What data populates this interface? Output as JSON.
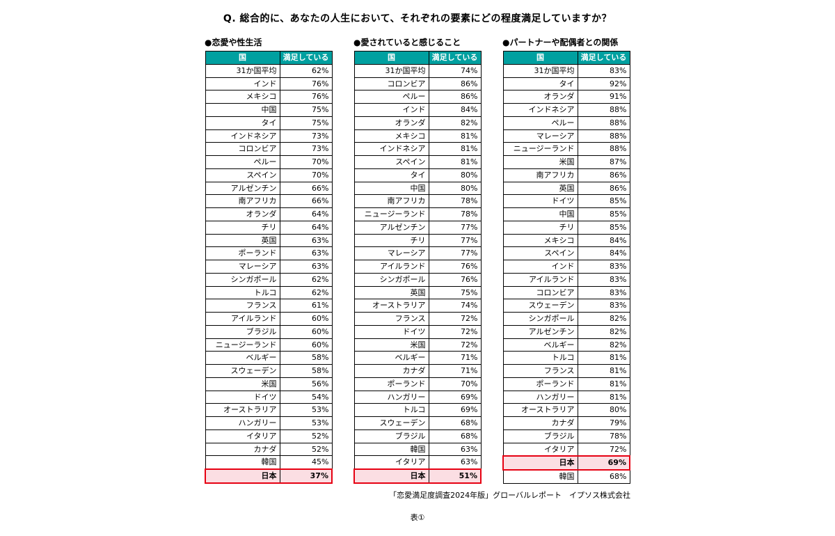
{
  "page": {
    "question": "Q. 総合的に、あなたの人生において、それぞれの要素にどの程度満足していますか？",
    "source": "「恋愛満足度調査2024年版」グローバルレポート　イプソス株式会社",
    "caption": "表①"
  },
  "colors": {
    "header_bg": "#00A0A0",
    "header_text": "#FFFFFF",
    "highlight_bg": "#FBDEE3",
    "highlight_border": "#E60012",
    "grid": "#000000"
  },
  "chart_data": [
    {
      "type": "table",
      "title": "●恋愛や性生活",
      "columns": [
        "国",
        "満足している"
      ],
      "highlight_row": "日本",
      "rows": [
        [
          "31か国平均",
          "62%"
        ],
        [
          "インド",
          "76%"
        ],
        [
          "メキシコ",
          "76%"
        ],
        [
          "中国",
          "75%"
        ],
        [
          "タイ",
          "75%"
        ],
        [
          "インドネシア",
          "73%"
        ],
        [
          "コロンビア",
          "73%"
        ],
        [
          "ペルー",
          "70%"
        ],
        [
          "スペイン",
          "70%"
        ],
        [
          "アルゼンチン",
          "66%"
        ],
        [
          "南アフリカ",
          "66%"
        ],
        [
          "オランダ",
          "64%"
        ],
        [
          "チリ",
          "64%"
        ],
        [
          "英国",
          "63%"
        ],
        [
          "ポーランド",
          "63%"
        ],
        [
          "マレーシア",
          "63%"
        ],
        [
          "シンガポール",
          "62%"
        ],
        [
          "トルコ",
          "62%"
        ],
        [
          "フランス",
          "61%"
        ],
        [
          "アイルランド",
          "60%"
        ],
        [
          "ブラジル",
          "60%"
        ],
        [
          "ニュージーランド",
          "60%"
        ],
        [
          "ベルギー",
          "58%"
        ],
        [
          "スウェーデン",
          "58%"
        ],
        [
          "米国",
          "56%"
        ],
        [
          "ドイツ",
          "54%"
        ],
        [
          "オーストラリア",
          "53%"
        ],
        [
          "ハンガリー",
          "53%"
        ],
        [
          "イタリア",
          "52%"
        ],
        [
          "カナダ",
          "52%"
        ],
        [
          "韓国",
          "45%"
        ],
        [
          "日本",
          "37%"
        ]
      ]
    },
    {
      "type": "table",
      "title": "●愛されていると感じること",
      "columns": [
        "国",
        "満足している"
      ],
      "highlight_row": "日本",
      "rows": [
        [
          "31か国平均",
          "74%"
        ],
        [
          "コロンビア",
          "86%"
        ],
        [
          "ペルー",
          "86%"
        ],
        [
          "インド",
          "84%"
        ],
        [
          "オランダ",
          "82%"
        ],
        [
          "メキシコ",
          "81%"
        ],
        [
          "インドネシア",
          "81%"
        ],
        [
          "スペイン",
          "81%"
        ],
        [
          "タイ",
          "80%"
        ],
        [
          "中国",
          "80%"
        ],
        [
          "南アフリカ",
          "78%"
        ],
        [
          "ニュージーランド",
          "78%"
        ],
        [
          "アルゼンチン",
          "77%"
        ],
        [
          "チリ",
          "77%"
        ],
        [
          "マレーシア",
          "77%"
        ],
        [
          "アイルランド",
          "76%"
        ],
        [
          "シンガポール",
          "76%"
        ],
        [
          "英国",
          "75%"
        ],
        [
          "オーストラリア",
          "74%"
        ],
        [
          "フランス",
          "72%"
        ],
        [
          "ドイツ",
          "72%"
        ],
        [
          "米国",
          "72%"
        ],
        [
          "ベルギー",
          "71%"
        ],
        [
          "カナダ",
          "71%"
        ],
        [
          "ポーランド",
          "70%"
        ],
        [
          "ハンガリー",
          "69%"
        ],
        [
          "トルコ",
          "69%"
        ],
        [
          "スウェーデン",
          "68%"
        ],
        [
          "ブラジル",
          "68%"
        ],
        [
          "韓国",
          "63%"
        ],
        [
          "イタリア",
          "63%"
        ],
        [
          "日本",
          "51%"
        ]
      ]
    },
    {
      "type": "table",
      "title": "●パートナーや配偶者との関係",
      "columns": [
        "国",
        "満足している"
      ],
      "highlight_row": "日本",
      "rows": [
        [
          "31か国平均",
          "83%"
        ],
        [
          "タイ",
          "92%"
        ],
        [
          "オランダ",
          "91%"
        ],
        [
          "インドネシア",
          "88%"
        ],
        [
          "ペルー",
          "88%"
        ],
        [
          "マレーシア",
          "88%"
        ],
        [
          "ニュージーランド",
          "88%"
        ],
        [
          "米国",
          "87%"
        ],
        [
          "南アフリカ",
          "86%"
        ],
        [
          "英国",
          "86%"
        ],
        [
          "ドイツ",
          "85%"
        ],
        [
          "中国",
          "85%"
        ],
        [
          "チリ",
          "85%"
        ],
        [
          "メキシコ",
          "84%"
        ],
        [
          "スペイン",
          "84%"
        ],
        [
          "インド",
          "83%"
        ],
        [
          "アイルランド",
          "83%"
        ],
        [
          "コロンビア",
          "83%"
        ],
        [
          "スウェーデン",
          "83%"
        ],
        [
          "シンガポール",
          "82%"
        ],
        [
          "アルゼンチン",
          "82%"
        ],
        [
          "ベルギー",
          "82%"
        ],
        [
          "トルコ",
          "81%"
        ],
        [
          "フランス",
          "81%"
        ],
        [
          "ポーランド",
          "81%"
        ],
        [
          "ハンガリー",
          "81%"
        ],
        [
          "オーストラリア",
          "80%"
        ],
        [
          "カナダ",
          "79%"
        ],
        [
          "ブラジル",
          "78%"
        ],
        [
          "イタリア",
          "72%"
        ],
        [
          "日本",
          "69%"
        ],
        [
          "韓国",
          "68%"
        ]
      ]
    }
  ]
}
